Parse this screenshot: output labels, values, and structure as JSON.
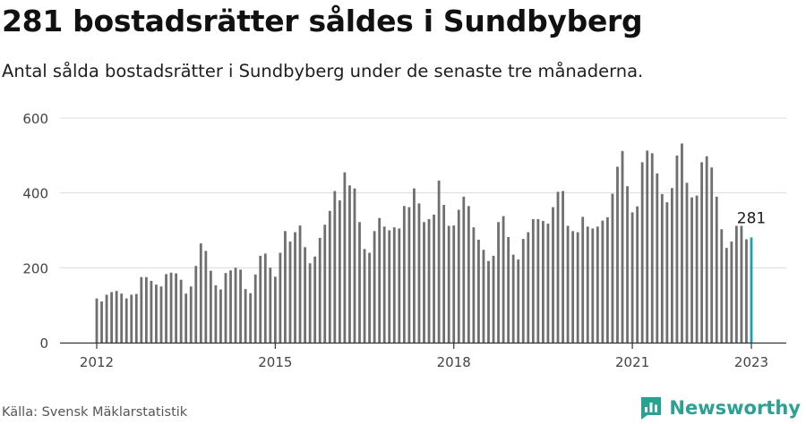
{
  "title": "281 bostadsrätter såldes i Sundbyberg",
  "subtitle": "Antal sålda bostadsrätter i Sundbyberg under de senaste tre månaderna.",
  "source": "Källa: Svensk Mäklarstatistik",
  "brand": "Newsworthy",
  "colors": {
    "bar": "#6f6f6f",
    "highlight": "#1c9fb0",
    "grid": "#dcdcdc",
    "brand": "#27a392"
  },
  "chart_data": {
    "type": "bar",
    "x_start": "2012-01",
    "x_end": "2023-01",
    "x_ticks": [
      "2012",
      "2015",
      "2018",
      "2021",
      "2023"
    ],
    "y_ticks": [
      "0",
      "200",
      "400",
      "600"
    ],
    "ylim": [
      0,
      600
    ],
    "highlight_label": "281",
    "values": [
      118,
      110,
      128,
      135,
      138,
      131,
      118,
      128,
      130,
      175,
      175,
      165,
      155,
      150,
      183,
      187,
      185,
      168,
      131,
      150,
      205,
      265,
      245,
      192,
      153,
      142,
      186,
      193,
      200,
      195,
      143,
      132,
      182,
      232,
      238,
      200,
      176,
      240,
      298,
      270,
      295,
      313,
      255,
      212,
      230,
      280,
      315,
      352,
      405,
      380,
      455,
      420,
      412,
      322,
      250,
      240,
      298,
      333,
      310,
      300,
      308,
      305,
      365,
      362,
      412,
      372,
      322,
      330,
      342,
      433,
      368,
      312,
      313,
      355,
      390,
      365,
      308,
      275,
      248,
      218,
      232,
      322,
      338,
      282,
      235,
      222,
      277,
      295,
      330,
      330,
      325,
      318,
      362,
      403,
      405,
      312,
      298,
      295,
      336,
      310,
      305,
      310,
      326,
      335,
      398,
      470,
      512,
      418,
      348,
      364,
      482,
      513,
      506,
      452,
      397,
      375,
      413,
      500,
      532,
      427,
      388,
      393,
      482,
      498,
      468,
      390,
      303,
      253,
      270,
      312,
      312,
      276,
      281
    ]
  }
}
